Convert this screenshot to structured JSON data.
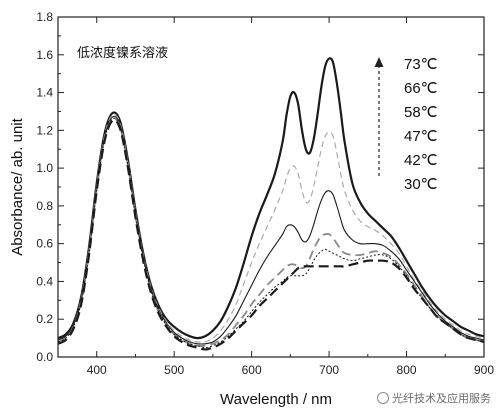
{
  "chart_data": {
    "type": "line",
    "title": "",
    "xlabel": "Wavelength / nm",
    "ylabel": "Absorbance/ ab. unit",
    "xlim": [
      350,
      900
    ],
    "ylim": [
      0.0,
      1.8
    ],
    "xticks": [
      400,
      500,
      600,
      700,
      800,
      900
    ],
    "yticks": [
      0.0,
      0.2,
      0.4,
      0.6,
      0.8,
      1.0,
      1.2,
      1.4,
      1.6,
      1.8
    ],
    "annotation": "低浓度镍系溶液",
    "legend": {
      "placement": "top-right",
      "entries": [
        "73℃",
        "66℃",
        "58℃",
        "47℃",
        "42℃",
        "30℃"
      ],
      "arrow": "up"
    },
    "grid": false,
    "series": [
      {
        "name": "73℃",
        "color": "#1a1a1a",
        "dash": "solid",
        "x": [
          350,
          360,
          370,
          380,
          390,
          400,
          410,
          420,
          430,
          440,
          450,
          460,
          470,
          480,
          490,
          500,
          510,
          520,
          530,
          540,
          550,
          560,
          570,
          580,
          590,
          600,
          610,
          620,
          630,
          640,
          645,
          650,
          655,
          660,
          665,
          670,
          675,
          680,
          685,
          690,
          695,
          700,
          705,
          710,
          715,
          720,
          730,
          740,
          750,
          760,
          770,
          780,
          790,
          800,
          810,
          820,
          830,
          840,
          850,
          860,
          870,
          880,
          890,
          900
        ],
        "y": [
          0.1,
          0.12,
          0.18,
          0.32,
          0.58,
          0.92,
          1.18,
          1.29,
          1.25,
          1.05,
          0.78,
          0.55,
          0.38,
          0.27,
          0.2,
          0.16,
          0.13,
          0.11,
          0.1,
          0.11,
          0.14,
          0.19,
          0.27,
          0.37,
          0.5,
          0.64,
          0.76,
          0.86,
          0.97,
          1.14,
          1.28,
          1.38,
          1.4,
          1.34,
          1.2,
          1.1,
          1.08,
          1.15,
          1.28,
          1.43,
          1.54,
          1.58,
          1.56,
          1.45,
          1.3,
          1.14,
          0.92,
          0.82,
          0.76,
          0.72,
          0.68,
          0.64,
          0.58,
          0.51,
          0.44,
          0.37,
          0.31,
          0.26,
          0.22,
          0.19,
          0.16,
          0.14,
          0.12,
          0.11
        ]
      },
      {
        "name": "66℃",
        "color": "#aaaaaa",
        "dash": "6,4",
        "x": [
          350,
          360,
          370,
          380,
          390,
          400,
          410,
          420,
          430,
          440,
          450,
          460,
          470,
          480,
          490,
          500,
          510,
          520,
          530,
          540,
          550,
          560,
          570,
          580,
          590,
          600,
          610,
          620,
          630,
          640,
          645,
          650,
          655,
          660,
          665,
          670,
          675,
          680,
          685,
          690,
          695,
          700,
          705,
          710,
          715,
          720,
          730,
          740,
          750,
          760,
          770,
          780,
          790,
          800,
          810,
          820,
          830,
          840,
          850,
          860,
          870,
          880,
          890,
          900
        ],
        "y": [
          0.09,
          0.11,
          0.17,
          0.31,
          0.57,
          0.91,
          1.17,
          1.28,
          1.24,
          1.04,
          0.77,
          0.54,
          0.37,
          0.26,
          0.19,
          0.14,
          0.11,
          0.09,
          0.08,
          0.08,
          0.1,
          0.14,
          0.2,
          0.28,
          0.39,
          0.5,
          0.6,
          0.69,
          0.78,
          0.88,
          0.95,
          1.0,
          1.01,
          0.97,
          0.88,
          0.82,
          0.83,
          0.9,
          1.0,
          1.1,
          1.17,
          1.19,
          1.17,
          1.08,
          0.97,
          0.88,
          0.78,
          0.72,
          0.69,
          0.67,
          0.64,
          0.6,
          0.55,
          0.48,
          0.41,
          0.35,
          0.29,
          0.24,
          0.2,
          0.17,
          0.14,
          0.12,
          0.11,
          0.1
        ]
      },
      {
        "name": "58℃",
        "color": "#1a1a1a",
        "dash": "solid",
        "x": [
          350,
          360,
          370,
          380,
          390,
          400,
          410,
          420,
          430,
          440,
          450,
          460,
          470,
          480,
          490,
          500,
          510,
          520,
          530,
          540,
          550,
          560,
          570,
          580,
          590,
          600,
          610,
          620,
          630,
          640,
          645,
          650,
          655,
          660,
          665,
          670,
          675,
          680,
          685,
          690,
          695,
          700,
          705,
          710,
          715,
          720,
          730,
          740,
          750,
          760,
          770,
          780,
          790,
          800,
          810,
          820,
          830,
          840,
          850,
          860,
          870,
          880,
          890,
          900
        ],
        "y": [
          0.09,
          0.11,
          0.17,
          0.3,
          0.56,
          0.9,
          1.16,
          1.27,
          1.23,
          1.03,
          0.76,
          0.53,
          0.36,
          0.25,
          0.18,
          0.13,
          0.1,
          0.08,
          0.07,
          0.07,
          0.08,
          0.11,
          0.16,
          0.22,
          0.3,
          0.38,
          0.46,
          0.53,
          0.59,
          0.65,
          0.69,
          0.7,
          0.69,
          0.66,
          0.62,
          0.61,
          0.64,
          0.7,
          0.77,
          0.83,
          0.87,
          0.88,
          0.86,
          0.8,
          0.73,
          0.67,
          0.62,
          0.6,
          0.6,
          0.6,
          0.59,
          0.56,
          0.52,
          0.46,
          0.4,
          0.34,
          0.28,
          0.23,
          0.19,
          0.16,
          0.13,
          0.11,
          0.1,
          0.09
        ]
      },
      {
        "name": "47℃",
        "color": "#888888",
        "dash": "9,5",
        "x": [
          350,
          360,
          370,
          380,
          390,
          400,
          410,
          420,
          430,
          440,
          450,
          460,
          470,
          480,
          490,
          500,
          510,
          520,
          530,
          540,
          550,
          560,
          570,
          580,
          590,
          600,
          610,
          620,
          630,
          640,
          645,
          650,
          655,
          660,
          665,
          670,
          675,
          680,
          685,
          690,
          695,
          700,
          705,
          710,
          715,
          720,
          730,
          740,
          750,
          760,
          770,
          780,
          790,
          800,
          810,
          820,
          830,
          840,
          850,
          860,
          870,
          880,
          890,
          900
        ],
        "y": [
          0.08,
          0.1,
          0.16,
          0.29,
          0.55,
          0.89,
          1.15,
          1.26,
          1.22,
          1.02,
          0.75,
          0.52,
          0.35,
          0.24,
          0.17,
          0.12,
          0.09,
          0.07,
          0.06,
          0.06,
          0.07,
          0.09,
          0.12,
          0.17,
          0.22,
          0.28,
          0.33,
          0.38,
          0.42,
          0.46,
          0.48,
          0.49,
          0.49,
          0.48,
          0.47,
          0.48,
          0.52,
          0.57,
          0.61,
          0.64,
          0.65,
          0.65,
          0.63,
          0.6,
          0.57,
          0.55,
          0.54,
          0.54,
          0.55,
          0.56,
          0.55,
          0.53,
          0.49,
          0.44,
          0.38,
          0.32,
          0.26,
          0.22,
          0.18,
          0.15,
          0.12,
          0.1,
          0.09,
          0.08
        ]
      },
      {
        "name": "42℃",
        "color": "#1a1a1a",
        "dash": "2,2",
        "x": [
          350,
          360,
          370,
          380,
          390,
          400,
          410,
          420,
          430,
          440,
          450,
          460,
          470,
          480,
          490,
          500,
          510,
          520,
          530,
          540,
          550,
          560,
          570,
          580,
          590,
          600,
          610,
          620,
          630,
          640,
          645,
          650,
          655,
          660,
          665,
          670,
          675,
          680,
          685,
          690,
          695,
          700,
          705,
          710,
          715,
          720,
          730,
          740,
          750,
          760,
          770,
          780,
          790,
          800,
          810,
          820,
          830,
          840,
          850,
          860,
          870,
          880,
          890,
          900
        ],
        "y": [
          0.08,
          0.1,
          0.16,
          0.29,
          0.55,
          0.89,
          1.15,
          1.26,
          1.22,
          1.02,
          0.75,
          0.52,
          0.35,
          0.24,
          0.17,
          0.12,
          0.09,
          0.07,
          0.06,
          0.05,
          0.06,
          0.08,
          0.11,
          0.15,
          0.19,
          0.24,
          0.29,
          0.33,
          0.37,
          0.4,
          0.42,
          0.43,
          0.43,
          0.43,
          0.43,
          0.44,
          0.47,
          0.51,
          0.54,
          0.56,
          0.57,
          0.56,
          0.55,
          0.54,
          0.53,
          0.52,
          0.51,
          0.52,
          0.53,
          0.54,
          0.54,
          0.52,
          0.48,
          0.43,
          0.37,
          0.31,
          0.26,
          0.21,
          0.18,
          0.15,
          0.12,
          0.1,
          0.09,
          0.08
        ]
      },
      {
        "name": "30℃",
        "color": "#1a1a1a",
        "dash": "10,5",
        "x": [
          350,
          360,
          370,
          380,
          390,
          400,
          410,
          420,
          430,
          440,
          450,
          460,
          470,
          480,
          490,
          500,
          510,
          520,
          530,
          540,
          550,
          560,
          570,
          580,
          590,
          600,
          610,
          620,
          630,
          640,
          645,
          650,
          655,
          660,
          665,
          670,
          675,
          680,
          685,
          690,
          695,
          700,
          705,
          710,
          715,
          720,
          730,
          740,
          750,
          760,
          770,
          780,
          790,
          800,
          810,
          820,
          830,
          840,
          850,
          860,
          870,
          880,
          890,
          900
        ],
        "y": [
          0.07,
          0.09,
          0.15,
          0.28,
          0.54,
          0.88,
          1.14,
          1.25,
          1.21,
          1.01,
          0.74,
          0.51,
          0.34,
          0.23,
          0.16,
          0.11,
          0.08,
          0.06,
          0.05,
          0.04,
          0.05,
          0.07,
          0.1,
          0.14,
          0.18,
          0.22,
          0.27,
          0.31,
          0.35,
          0.39,
          0.41,
          0.43,
          0.45,
          0.47,
          0.48,
          0.48,
          0.48,
          0.48,
          0.48,
          0.48,
          0.48,
          0.48,
          0.48,
          0.48,
          0.48,
          0.48,
          0.49,
          0.5,
          0.51,
          0.51,
          0.51,
          0.5,
          0.47,
          0.42,
          0.36,
          0.31,
          0.26,
          0.21,
          0.18,
          0.15,
          0.12,
          0.1,
          0.09,
          0.08
        ]
      }
    ]
  },
  "watermark": "光纤技术及应用服务"
}
